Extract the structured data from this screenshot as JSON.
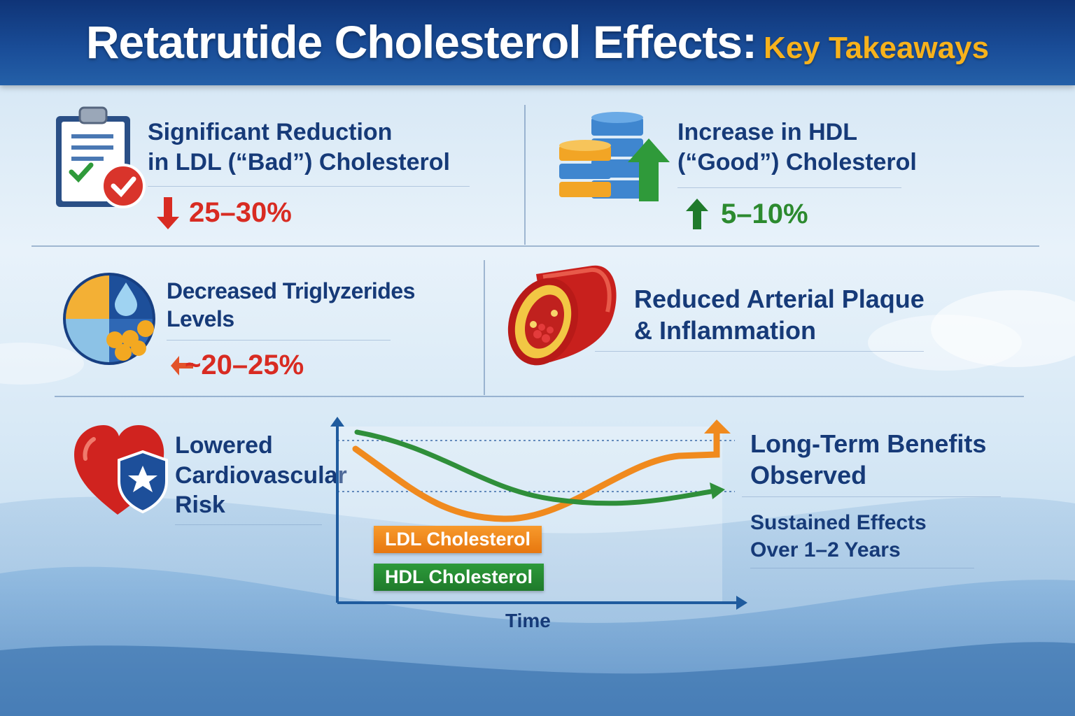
{
  "title": {
    "main": "Retatrutide Cholesterol Effects:",
    "accent": "Key Takeaways"
  },
  "cards": {
    "ldl": {
      "line1": "Significant Reduction",
      "line2": "in LDL (“Bad”) Cholesterol",
      "stat": "25–30%"
    },
    "hdl": {
      "line1": "Increase in HDL",
      "line2": "(“Good”) Cholesterol",
      "stat": "5–10%"
    },
    "triglycerides": {
      "line1": "Decreased Triglyzerides",
      "line2": "Levels",
      "stat": "~20–25%"
    },
    "plaque": {
      "line1": "Reduced Arterial Plaque",
      "line2": "& Inflammation"
    },
    "cardio": {
      "line1": "Lowered",
      "line2": "Cardiovascular",
      "line3": "Risk"
    },
    "longterm": {
      "line1": "Long-Term Benefits",
      "line2": "Observed",
      "sub1": "Sustained Effects",
      "sub2": "Over 1–2 Years"
    }
  },
  "chart": {
    "xlabel": "Time",
    "legend": {
      "ldl": "LDL Cholesterol",
      "hdl": "HDL Cholesterol"
    }
  },
  "colors": {
    "title_accent": "#f7b21c",
    "decrease": "#d82b22",
    "increase": "#2c8a2f",
    "ldl_line": "#f08a1e",
    "hdl_line": "#2f8f3a",
    "label_text": "#163a78"
  },
  "icons": [
    "clipboard-check-icon",
    "database-up-icon",
    "pie-chart-drop-icon",
    "artery-icon",
    "heart-shield-icon",
    "down-arrow-icon",
    "up-arrow-icon",
    "left-arrow-icon"
  ]
}
